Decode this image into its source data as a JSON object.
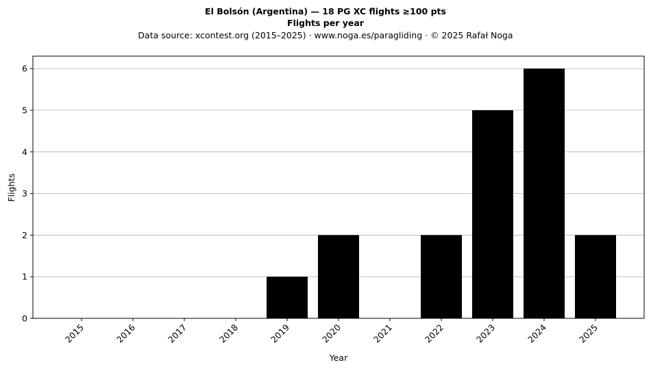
{
  "chart_data": {
    "type": "bar",
    "title": "El Bolsón (Argentina)  —  18 PG XC flights ≥100 pts",
    "title2": "Flights per year",
    "subtitle": "Data source: xcontest.org (2015–2025)  ·  www.noga.es/paragliding  ·  © 2025 Rafał Noga",
    "xlabel": "Year",
    "ylabel": "Flights",
    "categories": [
      "2015",
      "2016",
      "2017",
      "2018",
      "2019",
      "2020",
      "2021",
      "2022",
      "2023",
      "2024",
      "2025"
    ],
    "values": [
      0,
      0,
      0,
      0,
      1,
      2,
      0,
      2,
      5,
      6,
      2
    ],
    "ylim": [
      0,
      6.3
    ],
    "yticks": [
      0,
      1,
      2,
      3,
      4,
      5,
      6
    ],
    "grid": "y",
    "bar_color": "#000000",
    "grid_color": "#b0b0b0"
  }
}
